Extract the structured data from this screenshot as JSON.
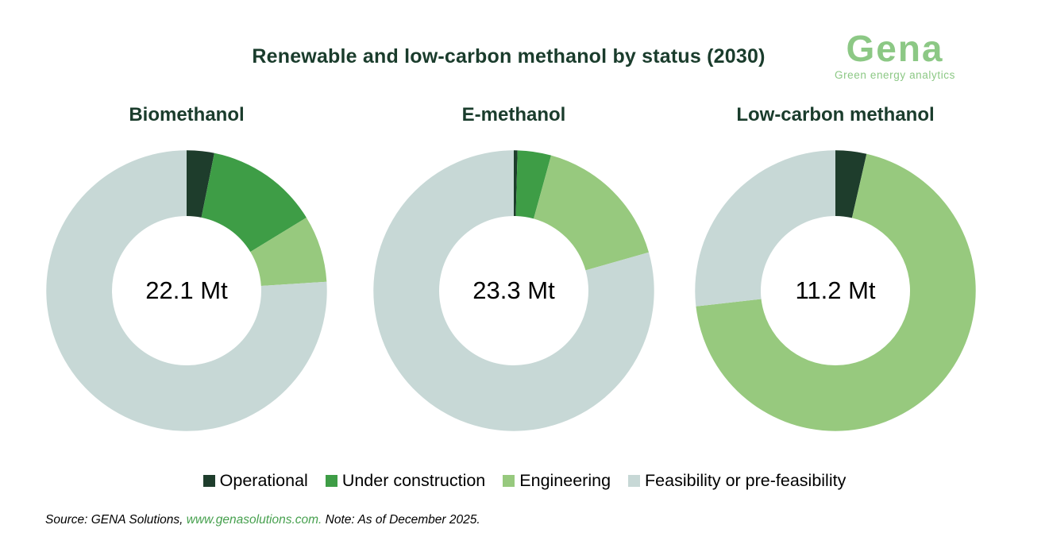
{
  "title": "Renewable and low-carbon methanol by status (2030)",
  "logo": {
    "name": "Gena",
    "tagline": "Green energy analytics"
  },
  "chart_data": [
    {
      "type": "pie",
      "subtype": "donut",
      "title": "Biomethanol",
      "center_label": "22.1 Mt",
      "total": 22.1,
      "unit": "Mt",
      "categories": [
        "Operational",
        "Under construction",
        "Engineering",
        "Feasibility or pre-feasibility"
      ],
      "values": [
        0.7,
        2.9,
        1.7,
        16.8
      ]
    },
    {
      "type": "pie",
      "subtype": "donut",
      "title": "E-methanol",
      "center_label": "23.3 Mt",
      "total": 23.3,
      "unit": "Mt",
      "categories": [
        "Operational",
        "Under construction",
        "Engineering",
        "Feasibility or pre-feasibility"
      ],
      "values": [
        0.1,
        0.9,
        3.8,
        18.5
      ]
    },
    {
      "type": "pie",
      "subtype": "donut",
      "title": "Low-carbon methanol",
      "center_label": "11.2 Mt",
      "total": 11.2,
      "unit": "Mt",
      "categories": [
        "Operational",
        "Under construction",
        "Engineering",
        "Feasibility or pre-feasibility"
      ],
      "values": [
        0.4,
        0,
        7.8,
        3.0
      ]
    }
  ],
  "legend": {
    "position": "bottom",
    "items": [
      {
        "label": "Operational",
        "color": "#1E3D2C"
      },
      {
        "label": "Under construction",
        "color": "#3E9D46"
      },
      {
        "label": "Engineering",
        "color": "#97C97E"
      },
      {
        "label": "Feasibility or pre-feasibility",
        "color": "#C7D8D6"
      }
    ]
  },
  "source": {
    "prefix": "Source: GENA Solutions, ",
    "link": "www.genasolutions.com.",
    "note": " Note: As of December 2025."
  },
  "colors": {
    "heading": "#1A3C2C",
    "logo": "#8CC885",
    "link": "#46A04E",
    "text": "#000000",
    "background": "#FFFFFF"
  }
}
